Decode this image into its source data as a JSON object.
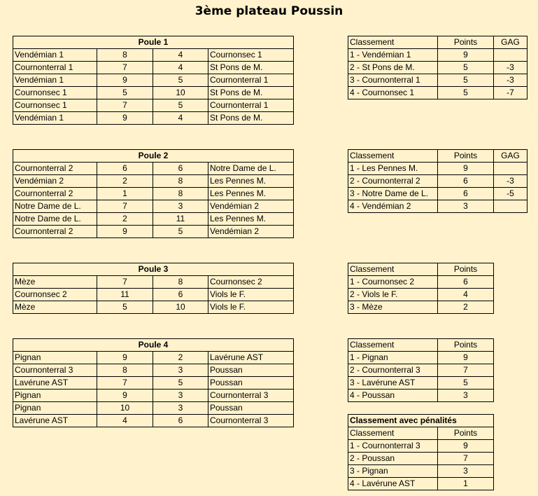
{
  "title": "3ème plateau Poussin",
  "poules": [
    {
      "name": "Poule 1",
      "matches": [
        [
          "Vendémian 1",
          "8",
          "4",
          "Cournonsec 1"
        ],
        [
          "Cournonterral 1",
          "7",
          "4",
          "St Pons de M."
        ],
        [
          "Vendémian 1",
          "9",
          "5",
          "Cournonterral 1"
        ],
        [
          "Cournonsec 1",
          "5",
          "10",
          "St Pons de M."
        ],
        [
          "Cournonsec 1",
          "7",
          "5",
          "Cournonterral 1"
        ],
        [
          "Vendémian 1",
          "9",
          "4",
          "St Pons de M."
        ]
      ]
    },
    {
      "name": "Poule 2",
      "matches": [
        [
          "Cournonterral 2",
          "6",
          "6",
          "Notre Dame de L."
        ],
        [
          "Vendémian 2",
          "2",
          "8",
          "Les Pennes M."
        ],
        [
          "Cournonterral 2",
          "1",
          "8",
          "Les Pennes M."
        ],
        [
          "Notre Dame de L.",
          "7",
          "3",
          "Vendémian 2"
        ],
        [
          "Notre Dame de L.",
          "2",
          "11",
          "Les Pennes M."
        ],
        [
          "Cournonterral 2",
          "9",
          "5",
          "Vendémian 2"
        ]
      ]
    },
    {
      "name": "Poule 3",
      "matches": [
        [
          "Mèze",
          "7",
          "8",
          "Cournonsec 2"
        ],
        [
          "Cournonsec 2",
          "11",
          "6",
          "Viols le F."
        ],
        [
          "Mèze",
          "5",
          "10",
          "Viols le F."
        ]
      ]
    },
    {
      "name": "Poule 4",
      "matches": [
        [
          "Pignan",
          "9",
          "2",
          "Lavérune AST"
        ],
        [
          "Cournonterral 3",
          "8",
          "3",
          "Poussan"
        ],
        [
          "Lavérune AST",
          "7",
          "5",
          "Poussan"
        ],
        [
          "Pignan",
          "9",
          "3",
          "Cournonterral 3"
        ],
        [
          "Pignan",
          "10",
          "3",
          "Poussan"
        ],
        [
          "Lavérune AST",
          "4",
          "6",
          "Cournonterral 3"
        ]
      ]
    }
  ],
  "classements": [
    {
      "headers": [
        "Classement",
        "Points",
        "GAG"
      ],
      "rows": [
        [
          "1 - Vendémian 1",
          "9",
          ""
        ],
        [
          "2 - St Pons de M.",
          "5",
          "-3"
        ],
        [
          "3 - Cournonterral 1",
          "5",
          "-3"
        ],
        [
          "4 - Cournonsec 1",
          "5",
          "-7"
        ]
      ]
    },
    {
      "headers": [
        "Classement",
        "Points",
        "GAG"
      ],
      "rows": [
        [
          "1 - Les Pennes M.",
          "9",
          ""
        ],
        [
          "2 - Cournonterral 2",
          "6",
          "-3"
        ],
        [
          "3 - Notre Dame de L.",
          "6",
          "-5"
        ],
        [
          "4 - Vendémian 2",
          "3",
          ""
        ]
      ]
    },
    {
      "headers": [
        "Classement",
        "Points"
      ],
      "rows": [
        [
          "1 - Cournonsec 2",
          "6"
        ],
        [
          "2 - Viols le F.",
          "4"
        ],
        [
          "3 - Mèze",
          "2"
        ]
      ]
    },
    {
      "headers": [
        "Classement",
        "Points"
      ],
      "rows": [
        [
          "1 - Pignan",
          "9"
        ],
        [
          "2 - Cournonterral 3",
          "7"
        ],
        [
          "3 - Lavérune AST",
          "5"
        ],
        [
          "4 - Poussan",
          "3"
        ]
      ]
    },
    {
      "title": "Classement avec pénalités",
      "headers": [
        "Classement",
        "Points"
      ],
      "rows": [
        [
          "1 - Cournonterral 3",
          "9"
        ],
        [
          "2 - Poussan",
          "7"
        ],
        [
          "3 - Pignan",
          "3"
        ],
        [
          "4 - Lavérune AST",
          "1"
        ]
      ]
    }
  ]
}
